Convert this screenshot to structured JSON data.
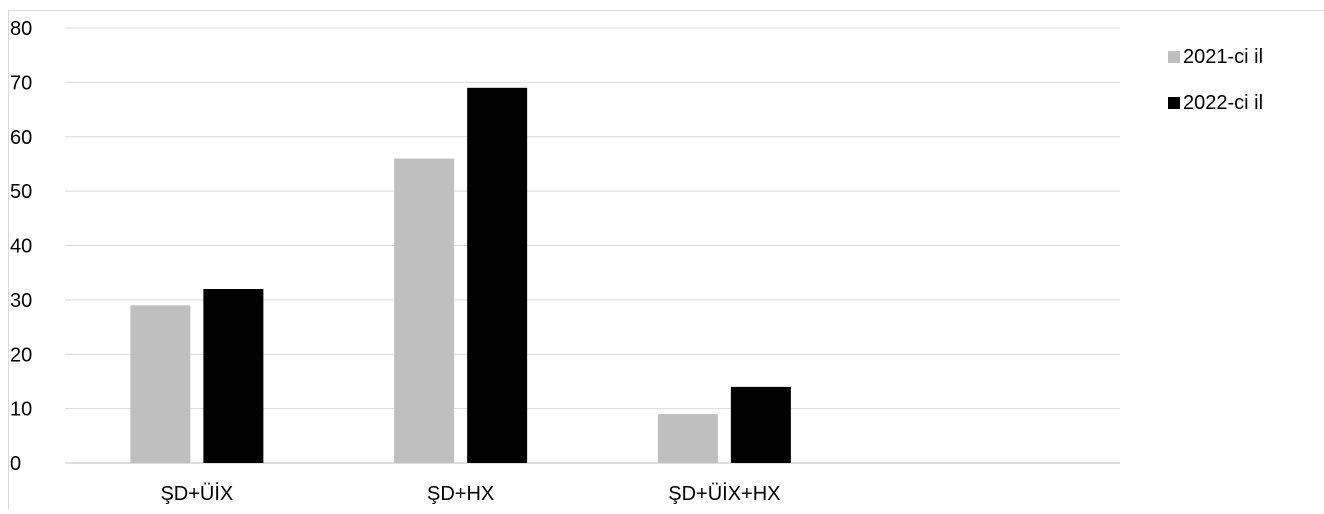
{
  "chart_data": {
    "type": "bar",
    "title": "",
    "xlabel": "",
    "ylabel": "",
    "categories": [
      "ŞD+ÜİX",
      "ŞD+HX",
      "ŞD+ÜİX+HX",
      ""
    ],
    "series": [
      {
        "name": "2021-ci il",
        "color": "#bfbfbf",
        "values": [
          29,
          56,
          9,
          null
        ]
      },
      {
        "name": "2022-ci il",
        "color": "#000000",
        "values": [
          32,
          69,
          14,
          null
        ]
      }
    ],
    "ylim": [
      0,
      80
    ],
    "yticks": [
      0,
      10,
      20,
      30,
      40,
      50,
      60,
      70,
      80
    ],
    "grid": true,
    "legend": "top-right"
  }
}
